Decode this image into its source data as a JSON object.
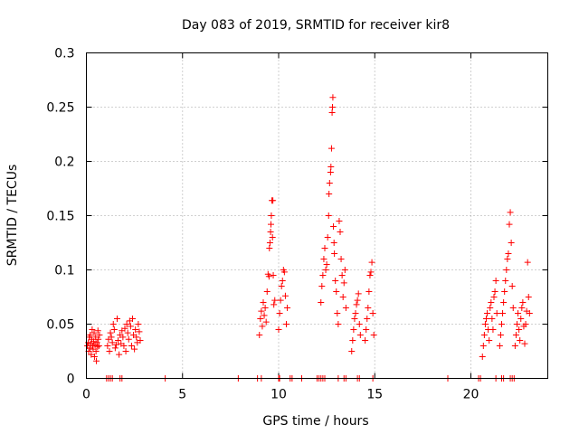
{
  "chart_data": {
    "type": "scatter",
    "title": "Day 083 of 2019, SRMTID for receiver kir8",
    "xlabel": "GPS time / hours",
    "ylabel": "SRMTID / TECUs",
    "xlim": [
      0,
      24
    ],
    "ylim": [
      0,
      0.3
    ],
    "xticks": [
      {
        "value": 0,
        "label": "0"
      },
      {
        "value": 5,
        "label": "5"
      },
      {
        "value": 10,
        "label": "10"
      },
      {
        "value": 15,
        "label": "15"
      },
      {
        "value": 20,
        "label": "20"
      }
    ],
    "yticks": [
      {
        "value": 0,
        "label": "0"
      },
      {
        "value": 0.05,
        "label": "0.05"
      },
      {
        "value": 0.1,
        "label": "0.1"
      },
      {
        "value": 0.15,
        "label": "0.15"
      },
      {
        "value": 0.2,
        "label": "0.2"
      },
      {
        "value": 0.25,
        "label": "0.25"
      },
      {
        "value": 0.3,
        "label": "0.3"
      }
    ],
    "grid": true,
    "marker": "+",
    "color": "#ff0000",
    "series": [
      {
        "name": "SRMTID",
        "points": [
          [
            0.05,
            0.03
          ],
          [
            0.1,
            0.033
          ],
          [
            0.12,
            0.025
          ],
          [
            0.15,
            0.038
          ],
          [
            0.18,
            0.028
          ],
          [
            0.2,
            0.04
          ],
          [
            0.22,
            0.032
          ],
          [
            0.25,
            0.022
          ],
          [
            0.28,
            0.036
          ],
          [
            0.3,
            0.045
          ],
          [
            0.32,
            0.03
          ],
          [
            0.35,
            0.027
          ],
          [
            0.38,
            0.034
          ],
          [
            0.4,
            0.042
          ],
          [
            0.42,
            0.02
          ],
          [
            0.45,
            0.031
          ],
          [
            0.48,
            0.038
          ],
          [
            0.5,
            0.025
          ],
          [
            0.52,
            0.016
          ],
          [
            0.55,
            0.033
          ],
          [
            0.58,
            0.029
          ],
          [
            0.6,
            0.044
          ],
          [
            0.62,
            0.036
          ],
          [
            0.65,
            0.03
          ],
          [
            0.68,
            0.04
          ],
          [
            1.1,
            0.03
          ],
          [
            1.15,
            0.036
          ],
          [
            1.2,
            0.025
          ],
          [
            1.25,
            0.042
          ],
          [
            1.3,
            0.038
          ],
          [
            1.35,
            0.033
          ],
          [
            1.4,
            0.05
          ],
          [
            1.45,
            0.045
          ],
          [
            1.5,
            0.028
          ],
          [
            1.55,
            0.031
          ],
          [
            1.6,
            0.055
          ],
          [
            1.65,
            0.035
          ],
          [
            1.7,
            0.022
          ],
          [
            1.75,
            0.04
          ],
          [
            1.8,
            0.032
          ],
          [
            1.85,
            0.044
          ],
          [
            1.9,
            0.038
          ],
          [
            1.95,
            0.03
          ],
          [
            2.0,
            0.046
          ],
          [
            2.05,
            0.025
          ],
          [
            2.1,
            0.05
          ],
          [
            2.15,
            0.042
          ],
          [
            2.2,
            0.036
          ],
          [
            2.25,
            0.053
          ],
          [
            2.3,
            0.048
          ],
          [
            2.35,
            0.03
          ],
          [
            2.4,
            0.055
          ],
          [
            2.45,
            0.04
          ],
          [
            2.5,
            0.027
          ],
          [
            2.55,
            0.045
          ],
          [
            2.6,
            0.038
          ],
          [
            2.65,
            0.033
          ],
          [
            2.7,
            0.05
          ],
          [
            2.75,
            0.043
          ],
          [
            2.8,
            0.035
          ],
          [
            9.0,
            0.04
          ],
          [
            9.05,
            0.055
          ],
          [
            9.1,
            0.062
          ],
          [
            9.15,
            0.048
          ],
          [
            9.2,
            0.07
          ],
          [
            9.25,
            0.058
          ],
          [
            9.3,
            0.065
          ],
          [
            9.35,
            0.052
          ],
          [
            9.4,
            0.08
          ],
          [
            9.45,
            0.096
          ],
          [
            9.5,
            0.094
          ],
          [
            9.52,
            0.12
          ],
          [
            9.55,
            0.125
          ],
          [
            9.58,
            0.135
          ],
          [
            9.6,
            0.142
          ],
          [
            9.62,
            0.15
          ],
          [
            9.65,
            0.164
          ],
          [
            9.7,
            0.164
          ],
          [
            9.68,
            0.13
          ],
          [
            9.72,
            0.095
          ],
          [
            9.75,
            0.068
          ],
          [
            9.8,
            0.072
          ],
          [
            10.0,
            0.045
          ],
          [
            10.05,
            0.06
          ],
          [
            10.1,
            0.072
          ],
          [
            10.15,
            0.085
          ],
          [
            10.2,
            0.09
          ],
          [
            10.25,
            0.1
          ],
          [
            10.3,
            0.098
          ],
          [
            10.35,
            0.076
          ],
          [
            10.4,
            0.05
          ],
          [
            10.45,
            0.065
          ],
          [
            12.2,
            0.07
          ],
          [
            12.25,
            0.085
          ],
          [
            12.3,
            0.095
          ],
          [
            12.35,
            0.11
          ],
          [
            12.4,
            0.12
          ],
          [
            12.45,
            0.1
          ],
          [
            12.5,
            0.105
          ],
          [
            12.55,
            0.13
          ],
          [
            12.6,
            0.15
          ],
          [
            12.62,
            0.17
          ],
          [
            12.65,
            0.18
          ],
          [
            12.7,
            0.19
          ],
          [
            12.72,
            0.195
          ],
          [
            12.75,
            0.212
          ],
          [
            12.78,
            0.245
          ],
          [
            12.8,
            0.25
          ],
          [
            12.82,
            0.259
          ],
          [
            12.85,
            0.14
          ],
          [
            12.88,
            0.125
          ],
          [
            12.9,
            0.115
          ],
          [
            12.95,
            0.09
          ],
          [
            13.0,
            0.08
          ],
          [
            13.05,
            0.06
          ],
          [
            13.1,
            0.05
          ],
          [
            13.15,
            0.145
          ],
          [
            13.2,
            0.135
          ],
          [
            13.25,
            0.11
          ],
          [
            13.3,
            0.095
          ],
          [
            13.35,
            0.075
          ],
          [
            13.4,
            0.088
          ],
          [
            13.45,
            0.1
          ],
          [
            13.5,
            0.065
          ],
          [
            13.8,
            0.025
          ],
          [
            13.85,
            0.035
          ],
          [
            13.9,
            0.045
          ],
          [
            13.95,
            0.055
          ],
          [
            14.0,
            0.06
          ],
          [
            14.05,
            0.068
          ],
          [
            14.1,
            0.072
          ],
          [
            14.15,
            0.078
          ],
          [
            14.2,
            0.05
          ],
          [
            14.25,
            0.04
          ],
          [
            14.5,
            0.035
          ],
          [
            14.55,
            0.045
          ],
          [
            14.6,
            0.055
          ],
          [
            14.65,
            0.065
          ],
          [
            14.7,
            0.08
          ],
          [
            14.75,
            0.095
          ],
          [
            14.8,
            0.098
          ],
          [
            14.85,
            0.107
          ],
          [
            14.9,
            0.06
          ],
          [
            14.95,
            0.04
          ],
          [
            20.6,
            0.02
          ],
          [
            20.65,
            0.03
          ],
          [
            20.7,
            0.04
          ],
          [
            20.75,
            0.05
          ],
          [
            20.8,
            0.055
          ],
          [
            20.85,
            0.06
          ],
          [
            20.9,
            0.045
          ],
          [
            20.95,
            0.035
          ],
          [
            21.0,
            0.065
          ],
          [
            21.05,
            0.07
          ],
          [
            21.1,
            0.055
          ],
          [
            21.15,
            0.045
          ],
          [
            21.2,
            0.075
          ],
          [
            21.25,
            0.08
          ],
          [
            21.3,
            0.09
          ],
          [
            21.35,
            0.06
          ],
          [
            21.5,
            0.03
          ],
          [
            21.55,
            0.04
          ],
          [
            21.6,
            0.05
          ],
          [
            21.65,
            0.06
          ],
          [
            21.7,
            0.07
          ],
          [
            21.75,
            0.08
          ],
          [
            21.8,
            0.09
          ],
          [
            21.85,
            0.1
          ],
          [
            21.9,
            0.11
          ],
          [
            21.95,
            0.115
          ],
          [
            22.0,
            0.142
          ],
          [
            22.05,
            0.153
          ],
          [
            22.1,
            0.125
          ],
          [
            22.15,
            0.085
          ],
          [
            22.2,
            0.065
          ],
          [
            22.3,
            0.03
          ],
          [
            22.35,
            0.04
          ],
          [
            22.4,
            0.05
          ],
          [
            22.45,
            0.06
          ],
          [
            22.5,
            0.045
          ],
          [
            22.55,
            0.035
          ],
          [
            22.6,
            0.055
          ],
          [
            22.65,
            0.065
          ],
          [
            22.7,
            0.07
          ],
          [
            22.75,
            0.048
          ],
          [
            22.8,
            0.032
          ],
          [
            22.85,
            0.05
          ],
          [
            22.9,
            0.062
          ],
          [
            22.95,
            0.107
          ],
          [
            23.0,
            0.075
          ],
          [
            23.05,
            0.06
          ],
          [
            1.05,
            0
          ],
          [
            1.15,
            0
          ],
          [
            1.25,
            0
          ],
          [
            1.35,
            0
          ],
          [
            1.75,
            0
          ],
          [
            1.85,
            0
          ],
          [
            4.1,
            0
          ],
          [
            7.9,
            0
          ],
          [
            8.9,
            0
          ],
          [
            9.1,
            0
          ],
          [
            10.0,
            0
          ],
          [
            10.05,
            0
          ],
          [
            10.6,
            0
          ],
          [
            10.7,
            0
          ],
          [
            11.2,
            0
          ],
          [
            12.0,
            0
          ],
          [
            12.1,
            0
          ],
          [
            12.2,
            0
          ],
          [
            12.3,
            0
          ],
          [
            12.4,
            0
          ],
          [
            13.1,
            0
          ],
          [
            13.4,
            0
          ],
          [
            13.5,
            0
          ],
          [
            14.1,
            0
          ],
          [
            14.2,
            0
          ],
          [
            14.9,
            0
          ],
          [
            18.8,
            0
          ],
          [
            20.4,
            0
          ],
          [
            20.5,
            0
          ],
          [
            21.3,
            0
          ],
          [
            21.6,
            0
          ],
          [
            21.7,
            0
          ],
          [
            22.05,
            0
          ],
          [
            22.15,
            0
          ],
          [
            22.25,
            0
          ]
        ]
      }
    ]
  }
}
